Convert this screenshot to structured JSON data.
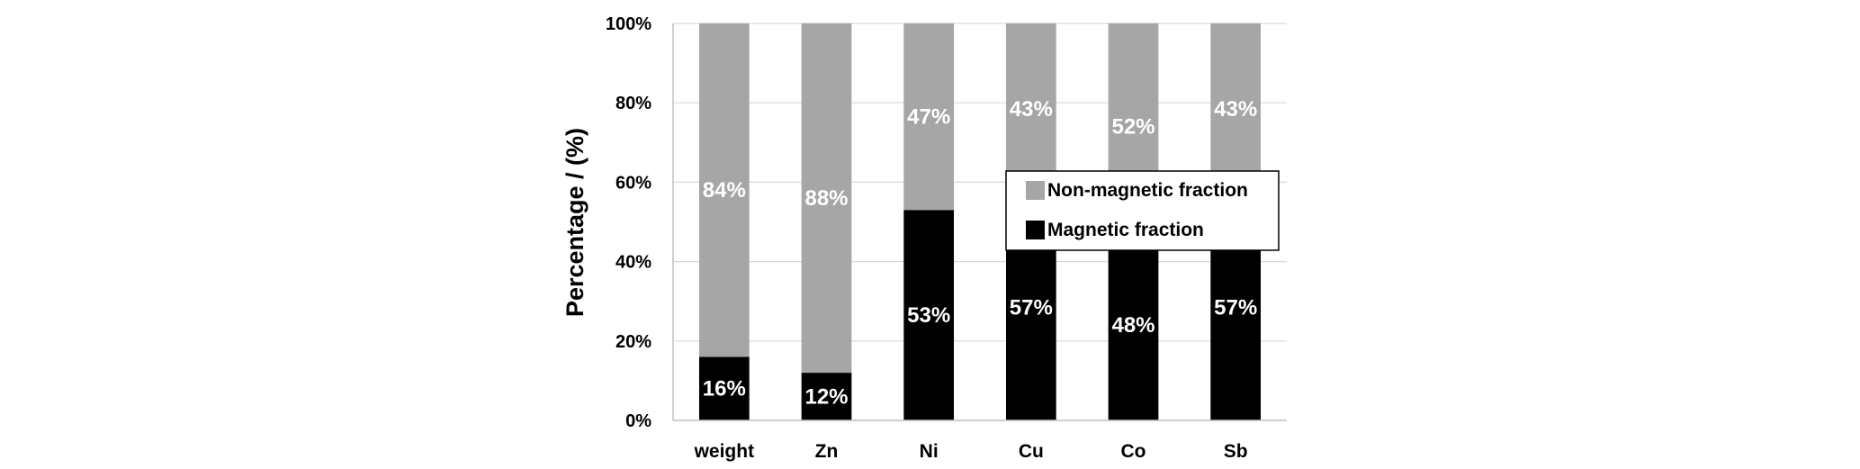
{
  "chart_data": {
    "type": "bar",
    "stacked": true,
    "percent_stacked": true,
    "categories": [
      "weight",
      "Zn",
      "Ni",
      "Cu",
      "Co",
      "Sb"
    ],
    "series": [
      {
        "name": "Magnetic fraction",
        "values": [
          16,
          12,
          53,
          57,
          48,
          57
        ],
        "labels": [
          "16%",
          "12%",
          "53%",
          "57%",
          "48%",
          "57%"
        ],
        "color": "#000000"
      },
      {
        "name": "Non-magnetic fraction",
        "values": [
          84,
          88,
          47,
          43,
          52,
          43
        ],
        "labels": [
          "84%",
          "88%",
          "47%",
          "43%",
          "52%",
          "43%"
        ],
        "color": "#a6a6a6"
      }
    ],
    "title": "",
    "xlabel": "",
    "ylabel": "Percentage / (%)",
    "ylim": [
      0,
      100
    ],
    "yticks": [
      0,
      20,
      40,
      60,
      80,
      100
    ],
    "ytick_labels": [
      "0%",
      "20%",
      "40%",
      "60%",
      "80%",
      "100%"
    ],
    "grid": true,
    "legend_position": "center-right",
    "legend_order": [
      "Non-magnetic fraction",
      "Magnetic fraction"
    ]
  }
}
